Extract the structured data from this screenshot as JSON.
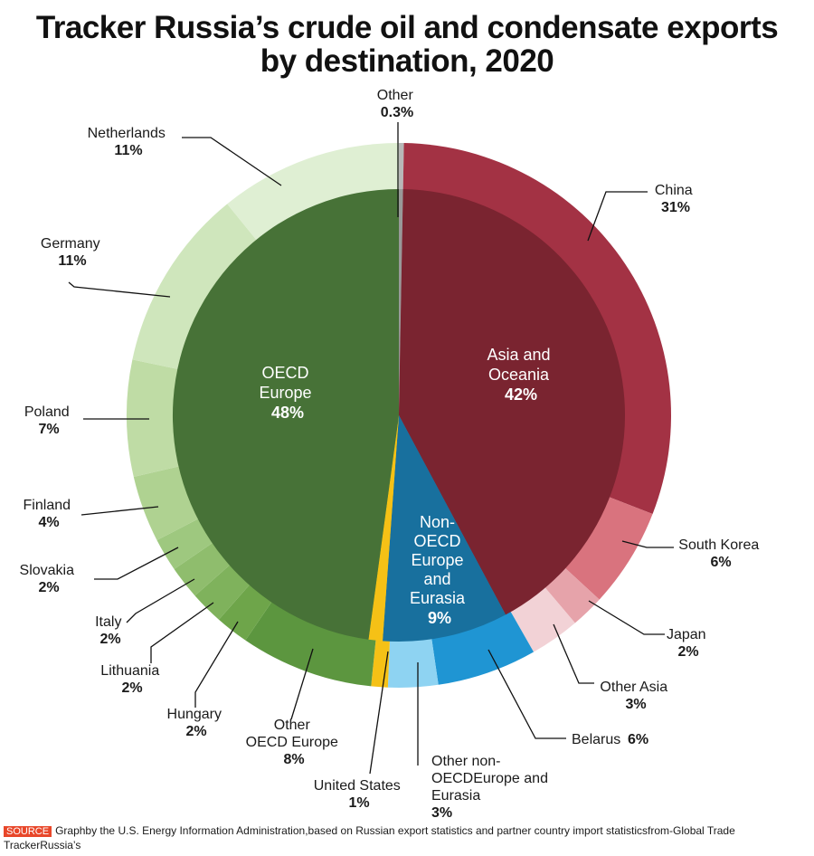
{
  "title_line1": "Tracker Russia’s crude oil and condensate exports",
  "title_line2": "by destination, 2020",
  "source": {
    "tag": "SOURCE",
    "text": "Graphby the U.S. Energy Information Administration,based on Russian export statistics and partner country import statisticsfrom-Global Trade TrackerRussia’s"
  },
  "chart_data": {
    "type": "pie",
    "inner": [
      {
        "name": "Other",
        "value": "0.3%",
        "color": "#999999"
      },
      {
        "name": "Asia and Oceania",
        "value": "42%",
        "color": "#7a2430"
      },
      {
        "name": "Non-OECD Europe and Eurasia",
        "value": "9%",
        "color": "#18709e"
      },
      {
        "name": "United States",
        "value": "1%",
        "color": "#f5c116"
      },
      {
        "name": "OECD Europe",
        "value": "48%",
        "color": "#477237"
      }
    ],
    "outer": [
      {
        "name": "Other",
        "value": "0.3%",
        "color": "#b8b8b8"
      },
      {
        "name": "China",
        "value": "31%",
        "color": "#a33244"
      },
      {
        "name": "South Korea",
        "value": "6%",
        "color": "#d9737e"
      },
      {
        "name": "Japan",
        "value": "2%",
        "color": "#e6a3aa"
      },
      {
        "name": "Other Asia",
        "value": "3%",
        "color": "#f2d2d6"
      },
      {
        "name": "Belarus",
        "value": "6%",
        "color": "#1f95d3"
      },
      {
        "name": "Other non-OECDEurope and Eurasia",
        "value": "3%",
        "color": "#8ed3f2"
      },
      {
        "name": "United States",
        "value": "1%",
        "color": "#f5c116"
      },
      {
        "name": "Other OECD Europe",
        "value": "8%",
        "color": "#5c963f"
      },
      {
        "name": "Hungary",
        "value": "2%",
        "color": "#6ea54a"
      },
      {
        "name": "Lithuania",
        "value": "2%",
        "color": "#7fb25c"
      },
      {
        "name": "Italy",
        "value": "2%",
        "color": "#8fbd6d"
      },
      {
        "name": "Slovakia",
        "value": "2%",
        "color": "#9ec87f"
      },
      {
        "name": "Finland",
        "value": "4%",
        "color": "#afd291"
      },
      {
        "name": "Poland",
        "value": "7%",
        "color": "#bfdca5"
      },
      {
        "name": "Germany",
        "value": "11%",
        "color": "#cfe6bc"
      },
      {
        "name": "Netherlands",
        "value": "11%",
        "color": "#dfefd3"
      }
    ],
    "inner_labels": {
      "oecd": {
        "line1": "OECD",
        "line2": "Europe",
        "value": "48%"
      },
      "asia": {
        "line1": "Asia and",
        "line2": "Oceania",
        "value": "42%"
      },
      "nonoecd": {
        "line1": "Non-",
        "line2": "OECD",
        "line3": "Europe",
        "line4": "and",
        "line5": "Eurasia",
        "value": "9%"
      }
    },
    "outer_labels": {
      "other": {
        "name": "Other",
        "value": "0.3%"
      },
      "china": {
        "name": "China",
        "value": "31%"
      },
      "south_korea": {
        "name": "South Korea",
        "value": "6%"
      },
      "japan": {
        "name": "Japan",
        "value": "2%"
      },
      "other_asia": {
        "name": "Other Asia",
        "value": "3%"
      },
      "belarus": {
        "name": "Belarus",
        "value": "6%"
      },
      "other_non_oecd": {
        "line1": "Other non-",
        "line2": "OECDEurope and",
        "line3": "Eurasia",
        "value": "3%"
      },
      "united_states": {
        "name": "United States",
        "value": "1%"
      },
      "other_oecd": {
        "line1": "Other",
        "line2": "OECD Europe",
        "value": "8%"
      },
      "hungary": {
        "name": "Hungary",
        "value": "2%"
      },
      "lithuania": {
        "name": "Lithuania",
        "value": "2%"
      },
      "italy": {
        "name": "Italy",
        "value": "2%"
      },
      "slovakia": {
        "name": "Slovakia",
        "value": "2%"
      },
      "finland": {
        "name": "Finland",
        "value": "4%"
      },
      "poland": {
        "name": "Poland",
        "value": "7%"
      },
      "germany": {
        "name": "Germany",
        "value": "11%"
      },
      "netherlands": {
        "name": "Netherlands",
        "value": "11%"
      }
    }
  }
}
